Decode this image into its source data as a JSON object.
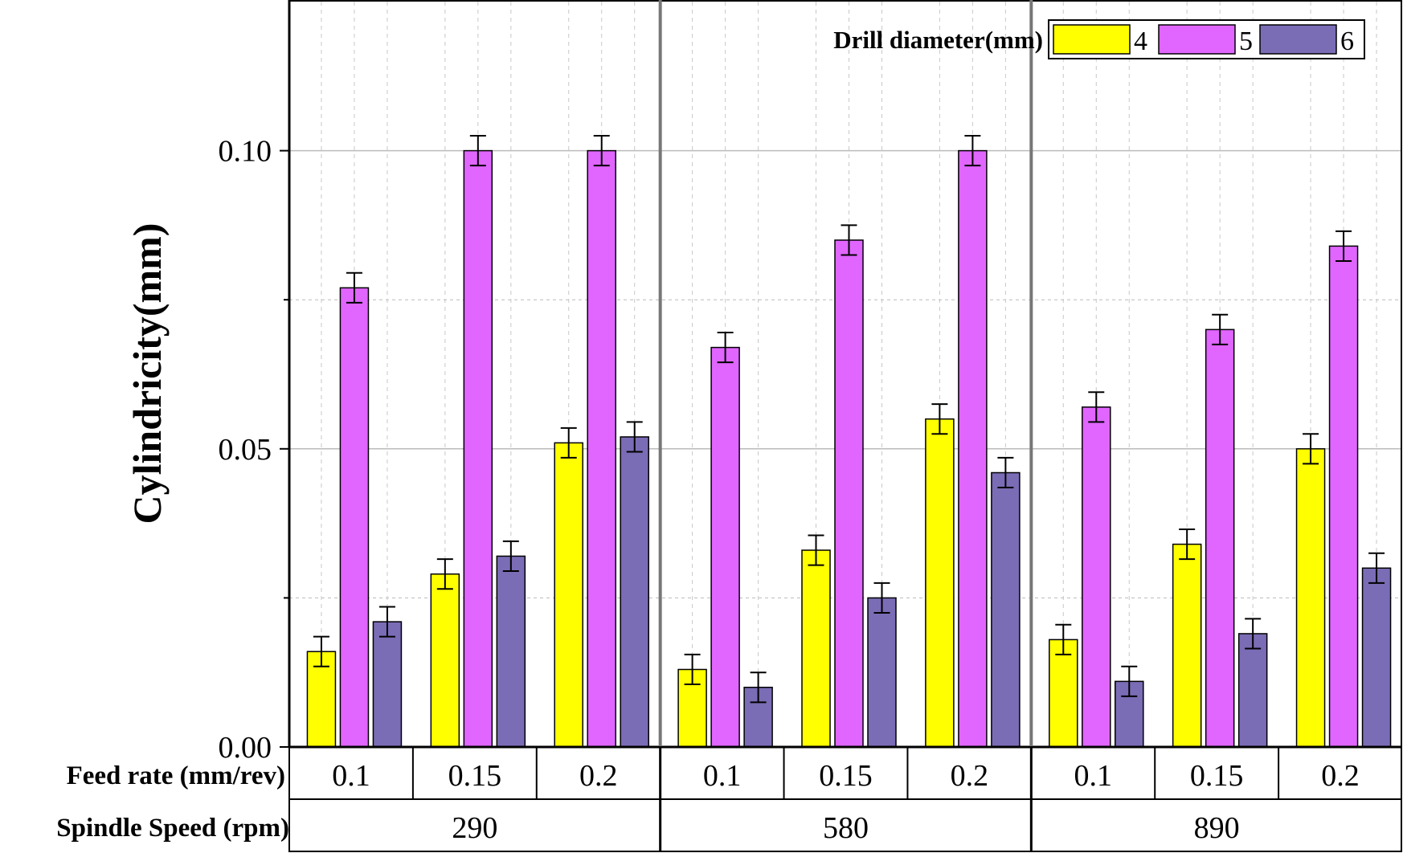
{
  "chart_data": {
    "type": "bar",
    "title": "",
    "ylabel": "Cylindricity(mm)",
    "ylim": [
      0,
      0.125
    ],
    "y_ticks": [
      "0.00",
      "0.05",
      "0.10"
    ],
    "y_tick_values": [
      0,
      0.05,
      0.1
    ],
    "grid": true,
    "legend": {
      "title": "Drill diameter(mm)",
      "placement": "top-right",
      "entries": [
        "4",
        "5",
        "6"
      ]
    },
    "row_labels": {
      "feed": "Feed rate (mm/rev)",
      "speed": "Spindle Speed (rpm)"
    },
    "groups": [
      {
        "speed": "290",
        "feeds": [
          {
            "label": "0.1",
            "values": [
              0.016,
              0.077,
              0.021
            ],
            "errors": [
              0.0025,
              0.0025,
              0.0025
            ]
          },
          {
            "label": "0.15",
            "values": [
              0.029,
              0.1,
              0.032
            ],
            "errors": [
              0.0025,
              0.0025,
              0.0025
            ]
          },
          {
            "label": "0.2",
            "values": [
              0.051,
              0.1,
              0.052
            ],
            "errors": [
              0.0025,
              0.0025,
              0.0025
            ]
          }
        ]
      },
      {
        "speed": "580",
        "feeds": [
          {
            "label": "0.1",
            "values": [
              0.013,
              0.067,
              0.01
            ],
            "errors": [
              0.0025,
              0.0025,
              0.0025
            ]
          },
          {
            "label": "0.15",
            "values": [
              0.033,
              0.085,
              0.025
            ],
            "errors": [
              0.0025,
              0.0025,
              0.0025
            ]
          },
          {
            "label": "0.2",
            "values": [
              0.055,
              0.1,
              0.046
            ],
            "errors": [
              0.0025,
              0.0025,
              0.0025
            ]
          }
        ]
      },
      {
        "speed": "890",
        "feeds": [
          {
            "label": "0.1",
            "values": [
              0.018,
              0.057,
              0.011
            ],
            "errors": [
              0.0025,
              0.0025,
              0.0025
            ]
          },
          {
            "label": "0.15",
            "values": [
              0.034,
              0.07,
              0.019
            ],
            "errors": [
              0.0025,
              0.0025,
              0.0025
            ]
          },
          {
            "label": "0.2",
            "values": [
              0.05,
              0.084,
              0.03
            ],
            "errors": [
              0.0025,
              0.0025,
              0.0025
            ]
          }
        ]
      }
    ],
    "series": [
      {
        "name": "4",
        "color": "#FFFF00"
      },
      {
        "name": "5",
        "color": "#E066FF"
      },
      {
        "name": "6",
        "color": "#7B6CB6"
      }
    ]
  }
}
